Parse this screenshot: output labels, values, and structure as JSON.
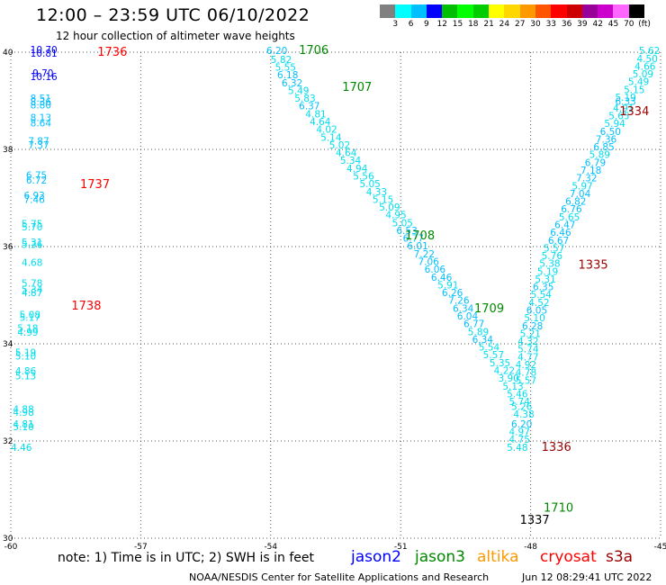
{
  "header": {
    "title": "12:00 – 23:59 UTC 06/10/2022",
    "subtitle": "12 hour collection of altimeter wave heights"
  },
  "colorbar": {
    "colors": [
      "#808080",
      "#00ffff",
      "#00bfff",
      "#0000ff",
      "#00bf00",
      "#00ff00",
      "#00cc00",
      "#ffff00",
      "#ffd700",
      "#ff9900",
      "#ff5500",
      "#ff0000",
      "#cc0000",
      "#990099",
      "#cc00cc",
      "#ff66ff",
      "#000000"
    ],
    "labels": [
      "3",
      "6",
      "9",
      "12",
      "15",
      "18",
      "21",
      "24",
      "27",
      "30",
      "33",
      "36",
      "39",
      "42",
      "45",
      "70",
      "(ft)"
    ]
  },
  "axes": {
    "x_ticks": [
      "-60",
      "-57",
      "-54",
      "-51",
      "-48",
      "-45"
    ],
    "y_ticks": [
      "40",
      "38",
      "36",
      "34",
      "32",
      "30"
    ]
  },
  "note": "note: 1) Time is in UTC; 2) SWH is in feet",
  "legend": {
    "jason2": {
      "label": "jason2",
      "color": "#0000ff"
    },
    "jason3": {
      "label": "jason3",
      "color": "#008800"
    },
    "altika": {
      "label": "altika",
      "color": "#ff9900"
    },
    "cryosat": {
      "label": "cryosat",
      "color": "#ff0000"
    },
    "s3a": {
      "label": "s3a",
      "color": "#990000"
    }
  },
  "footer": {
    "credit": "NOAA/NESDIS Center for Satellite Applications and Research",
    "stamp": "Jun 12 08:29:41 UTC 2022"
  },
  "map_data": {
    "lon_range": [
      -60,
      -45
    ],
    "lat_range": [
      30,
      40
    ],
    "time_labels": [
      {
        "text": "1736",
        "lon": -58.0,
        "lat": 39.93,
        "color": "#ff0000"
      },
      {
        "text": "1706",
        "lon": -53.35,
        "lat": 39.96,
        "color": "#008800"
      },
      {
        "text": "1707",
        "lon": -52.35,
        "lat": 39.2,
        "color": "#008800"
      },
      {
        "text": "1737",
        "lon": -58.4,
        "lat": 37.2,
        "color": "#ff0000"
      },
      {
        "text": "1708",
        "lon": -50.9,
        "lat": 36.15,
        "color": "#008800"
      },
      {
        "text": "1709",
        "lon": -49.3,
        "lat": 34.65,
        "color": "#008800"
      },
      {
        "text": "1738",
        "lon": -58.6,
        "lat": 34.7,
        "color": "#ff0000"
      },
      {
        "text": "1710",
        "lon": -47.7,
        "lat": 30.55,
        "color": "#008800"
      },
      {
        "text": "1334",
        "lon": -45.95,
        "lat": 38.7,
        "color": "#990000"
      },
      {
        "text": "1335",
        "lon": -46.9,
        "lat": 35.55,
        "color": "#990000"
      },
      {
        "text": "1336",
        "lon": -47.75,
        "lat": 31.8,
        "color": "#990000"
      },
      {
        "text": "1337",
        "lon": -48.25,
        "lat": 30.3,
        "color": "#000000"
      }
    ],
    "wave_heights": [
      {
        "v": "10.70",
        "lon": -59.55,
        "lat": 39.98,
        "c": "#0000ff"
      },
      {
        "v": "10.81",
        "lon": -59.55,
        "lat": 39.91,
        "c": "#0000ff"
      },
      {
        "v": "9.70",
        "lon": -59.5,
        "lat": 39.5,
        "c": "#0000ff"
      },
      {
        "v": "10.16",
        "lon": -59.55,
        "lat": 39.43,
        "c": "#0000ff"
      },
      {
        "v": "8.51",
        "lon": -59.55,
        "lat": 38.98,
        "c": "#00bfff"
      },
      {
        "v": "8.36",
        "lon": -59.55,
        "lat": 38.91,
        "c": "#00bfff"
      },
      {
        "v": "8.80",
        "lon": -59.55,
        "lat": 38.84,
        "c": "#00bfff"
      },
      {
        "v": "8.13",
        "lon": -59.55,
        "lat": 38.58,
        "c": "#00bfff"
      },
      {
        "v": "8.64",
        "lon": -59.55,
        "lat": 38.47,
        "c": "#00bfff"
      },
      {
        "v": "7.87",
        "lon": -59.6,
        "lat": 38.1,
        "c": "#00bfff"
      },
      {
        "v": "7.37",
        "lon": -59.6,
        "lat": 38.02,
        "c": "#00bfff"
      },
      {
        "v": "6.75",
        "lon": -59.65,
        "lat": 37.4,
        "c": "#00bfff"
      },
      {
        "v": "6.72",
        "lon": -59.65,
        "lat": 37.3,
        "c": "#00bfff"
      },
      {
        "v": "6.93",
        "lon": -59.7,
        "lat": 36.98,
        "c": "#00bfff"
      },
      {
        "v": "7.46",
        "lon": -59.7,
        "lat": 36.9,
        "c": "#00bfff"
      },
      {
        "v": "5.75",
        "lon": -59.75,
        "lat": 36.4,
        "c": "#00ddee"
      },
      {
        "v": "5.70",
        "lon": -59.75,
        "lat": 36.33,
        "c": "#00ddee"
      },
      {
        "v": "5.31",
        "lon": -59.75,
        "lat": 36.02,
        "c": "#00ddee"
      },
      {
        "v": "5.36",
        "lon": -59.75,
        "lat": 35.97,
        "c": "#00ddee"
      },
      {
        "v": "4.68",
        "lon": -59.75,
        "lat": 35.6,
        "c": "#00ddee"
      },
      {
        "v": "5.78",
        "lon": -59.75,
        "lat": 35.18,
        "c": "#00ddee"
      },
      {
        "v": "5.34",
        "lon": -59.75,
        "lat": 35.05,
        "c": "#00ddee"
      },
      {
        "v": "4.87",
        "lon": -59.75,
        "lat": 34.98,
        "c": "#00ddee"
      },
      {
        "v": "5.08",
        "lon": -59.8,
        "lat": 34.53,
        "c": "#00ddee"
      },
      {
        "v": "5.17",
        "lon": -59.8,
        "lat": 34.47,
        "c": "#00ddee"
      },
      {
        "v": "5.18",
        "lon": -59.85,
        "lat": 34.25,
        "c": "#00ddee"
      },
      {
        "v": "4.99",
        "lon": -59.85,
        "lat": 34.17,
        "c": "#00ddee"
      },
      {
        "v": "5.19",
        "lon": -59.9,
        "lat": 33.75,
        "c": "#00ddee"
      },
      {
        "v": "5.10",
        "lon": -59.9,
        "lat": 33.68,
        "c": "#00ddee"
      },
      {
        "v": "4.86",
        "lon": -59.9,
        "lat": 33.37,
        "c": "#00ddee"
      },
      {
        "v": "5.13",
        "lon": -59.9,
        "lat": 33.27,
        "c": "#00ddee"
      },
      {
        "v": "4.88",
        "lon": -59.95,
        "lat": 32.58,
        "c": "#00ddee"
      },
      {
        "v": "4.98",
        "lon": -59.95,
        "lat": 32.52,
        "c": "#00ddee"
      },
      {
        "v": "4.81",
        "lon": -59.95,
        "lat": 32.28,
        "c": "#00ddee"
      },
      {
        "v": "5.10",
        "lon": -59.95,
        "lat": 32.22,
        "c": "#00ddee"
      },
      {
        "v": "4.46",
        "lon": -60.0,
        "lat": 31.8,
        "c": "#00ddee"
      },
      {
        "v": "6.20",
        "lon": -54.1,
        "lat": 39.96,
        "c": "#00bfff"
      },
      {
        "v": "5.82",
        "lon": -54.0,
        "lat": 39.78,
        "c": "#00ddee"
      },
      {
        "v": "5.55",
        "lon": -53.9,
        "lat": 39.62,
        "c": "#00ddee"
      },
      {
        "v": "6.18",
        "lon": -53.85,
        "lat": 39.46,
        "c": "#00bfff"
      },
      {
        "v": "6.32",
        "lon": -53.75,
        "lat": 39.3,
        "c": "#00bfff"
      },
      {
        "v": "5.49",
        "lon": -53.6,
        "lat": 39.14,
        "c": "#00ddee"
      },
      {
        "v": "5.83",
        "lon": -53.45,
        "lat": 38.98,
        "c": "#00ddee"
      },
      {
        "v": "6.37",
        "lon": -53.35,
        "lat": 38.82,
        "c": "#00bfff"
      },
      {
        "v": "4.81",
        "lon": -53.2,
        "lat": 38.66,
        "c": "#00ddee"
      },
      {
        "v": "4.64",
        "lon": -53.1,
        "lat": 38.5,
        "c": "#00ddee"
      },
      {
        "v": "4.02",
        "lon": -52.95,
        "lat": 38.34,
        "c": "#00ddee"
      },
      {
        "v": "5.14",
        "lon": -52.85,
        "lat": 38.18,
        "c": "#00ddee"
      },
      {
        "v": "5.02",
        "lon": -52.65,
        "lat": 38.02,
        "c": "#00ddee"
      },
      {
        "v": "4.64",
        "lon": -52.5,
        "lat": 37.86,
        "c": "#00ddee"
      },
      {
        "v": "5.34",
        "lon": -52.4,
        "lat": 37.7,
        "c": "#00ddee"
      },
      {
        "v": "4.94",
        "lon": -52.25,
        "lat": 37.54,
        "c": "#00ddee"
      },
      {
        "v": "5.56",
        "lon": -52.1,
        "lat": 37.38,
        "c": "#00ddee"
      },
      {
        "v": "5.05",
        "lon": -51.95,
        "lat": 37.22,
        "c": "#00ddee"
      },
      {
        "v": "4.33",
        "lon": -51.8,
        "lat": 37.06,
        "c": "#00ddee"
      },
      {
        "v": "5.15",
        "lon": -51.65,
        "lat": 36.9,
        "c": "#00ddee"
      },
      {
        "v": "5.09",
        "lon": -51.5,
        "lat": 36.74,
        "c": "#00ddee"
      },
      {
        "v": "4.95",
        "lon": -51.35,
        "lat": 36.58,
        "c": "#00ddee"
      },
      {
        "v": "5.05",
        "lon": -51.2,
        "lat": 36.42,
        "c": "#00ddee"
      },
      {
        "v": "6.53",
        "lon": -51.1,
        "lat": 36.26,
        "c": "#00bfff"
      },
      {
        "v": "6.77",
        "lon": -50.95,
        "lat": 36.1,
        "c": "#00bfff"
      },
      {
        "v": "6.01",
        "lon": -50.85,
        "lat": 35.94,
        "c": "#00bfff"
      },
      {
        "v": "7.22",
        "lon": -50.7,
        "lat": 35.78,
        "c": "#00bfff"
      },
      {
        "v": "7.06",
        "lon": -50.6,
        "lat": 35.62,
        "c": "#00bfff"
      },
      {
        "v": "6.06",
        "lon": -50.45,
        "lat": 35.46,
        "c": "#00bfff"
      },
      {
        "v": "6.46",
        "lon": -50.3,
        "lat": 35.3,
        "c": "#00bfff"
      },
      {
        "v": "5.91",
        "lon": -50.15,
        "lat": 35.14,
        "c": "#00ddee"
      },
      {
        "v": "6.26",
        "lon": -50.05,
        "lat": 34.98,
        "c": "#00bfff"
      },
      {
        "v": "7.26",
        "lon": -49.9,
        "lat": 34.82,
        "c": "#00bfff"
      },
      {
        "v": "6.34",
        "lon": -49.8,
        "lat": 34.66,
        "c": "#00bfff"
      },
      {
        "v": "6.04",
        "lon": -49.7,
        "lat": 34.5,
        "c": "#00bfff"
      },
      {
        "v": "6.77",
        "lon": -49.55,
        "lat": 34.34,
        "c": "#00bfff"
      },
      {
        "v": "5.89",
        "lon": -49.45,
        "lat": 34.18,
        "c": "#00ddee"
      },
      {
        "v": "6.34",
        "lon": -49.35,
        "lat": 34.02,
        "c": "#00bfff"
      },
      {
        "v": "5.54",
        "lon": -49.2,
        "lat": 33.86,
        "c": "#00ddee"
      },
      {
        "v": "5.57",
        "lon": -49.1,
        "lat": 33.7,
        "c": "#00ddee"
      },
      {
        "v": "5.35",
        "lon": -48.95,
        "lat": 33.54,
        "c": "#00ddee"
      },
      {
        "v": "4.22",
        "lon": -48.85,
        "lat": 33.38,
        "c": "#00ddee"
      },
      {
        "v": "3.90",
        "lon": -48.75,
        "lat": 33.22,
        "c": "#00ddee"
      },
      {
        "v": "5.13",
        "lon": -48.65,
        "lat": 33.06,
        "c": "#00ddee"
      },
      {
        "v": "5.46",
        "lon": -48.55,
        "lat": 32.9,
        "c": "#00ddee"
      },
      {
        "v": "5.74",
        "lon": -48.5,
        "lat": 32.74,
        "c": "#00ddee"
      },
      {
        "v": "5.26",
        "lon": -48.45,
        "lat": 32.64,
        "c": "#00ddee"
      },
      {
        "v": "4.38",
        "lon": -48.4,
        "lat": 32.48,
        "c": "#00ddee"
      },
      {
        "v": "6.20",
        "lon": -48.45,
        "lat": 32.28,
        "c": "#00bfff"
      },
      {
        "v": "4.97",
        "lon": -48.5,
        "lat": 32.12,
        "c": "#00ddee"
      },
      {
        "v": "4.75",
        "lon": -48.5,
        "lat": 31.96,
        "c": "#00ddee"
      },
      {
        "v": "5.48",
        "lon": -48.55,
        "lat": 31.8,
        "c": "#00ddee"
      },
      {
        "v": "5.62",
        "lon": -45.5,
        "lat": 39.96,
        "c": "#00ddee"
      },
      {
        "v": "4.50",
        "lon": -45.55,
        "lat": 39.8,
        "c": "#00ddee"
      },
      {
        "v": "4.66",
        "lon": -45.6,
        "lat": 39.64,
        "c": "#00ddee"
      },
      {
        "v": "5.09",
        "lon": -45.65,
        "lat": 39.48,
        "c": "#00ddee"
      },
      {
        "v": "5.49",
        "lon": -45.75,
        "lat": 39.32,
        "c": "#00ddee"
      },
      {
        "v": "5.15",
        "lon": -45.85,
        "lat": 39.16,
        "c": "#00ddee"
      },
      {
        "v": "5.19",
        "lon": -46.05,
        "lat": 39.0,
        "c": "#00ddee"
      },
      {
        "v": "6.33",
        "lon": -46.05,
        "lat": 38.92,
        "c": "#00bfff"
      },
      {
        "v": "4.91",
        "lon": -46.1,
        "lat": 38.78,
        "c": "#00ddee"
      },
      {
        "v": "5.65",
        "lon": -46.2,
        "lat": 38.62,
        "c": "#00ddee"
      },
      {
        "v": "5.94",
        "lon": -46.3,
        "lat": 38.46,
        "c": "#00ddee"
      },
      {
        "v": "6.50",
        "lon": -46.4,
        "lat": 38.3,
        "c": "#00bfff"
      },
      {
        "v": "7.36",
        "lon": -46.5,
        "lat": 38.14,
        "c": "#00bfff"
      },
      {
        "v": "6.85",
        "lon": -46.55,
        "lat": 37.98,
        "c": "#00bfff"
      },
      {
        "v": "5.89",
        "lon": -46.65,
        "lat": 37.82,
        "c": "#00ddee"
      },
      {
        "v": "6.79",
        "lon": -46.75,
        "lat": 37.66,
        "c": "#00bfff"
      },
      {
        "v": "7.18",
        "lon": -46.85,
        "lat": 37.5,
        "c": "#00bfff"
      },
      {
        "v": "7.32",
        "lon": -46.95,
        "lat": 37.34,
        "c": "#00bfff"
      },
      {
        "v": "5.97",
        "lon": -47.05,
        "lat": 37.18,
        "c": "#00ddee"
      },
      {
        "v": "7.04",
        "lon": -47.1,
        "lat": 37.02,
        "c": "#00bfff"
      },
      {
        "v": "6.82",
        "lon": -47.2,
        "lat": 36.86,
        "c": "#00bfff"
      },
      {
        "v": "6.76",
        "lon": -47.3,
        "lat": 36.7,
        "c": "#00bfff"
      },
      {
        "v": "5.65",
        "lon": -47.35,
        "lat": 36.54,
        "c": "#00ddee"
      },
      {
        "v": "6.47",
        "lon": -47.45,
        "lat": 36.38,
        "c": "#00bfff"
      },
      {
        "v": "6.46",
        "lon": -47.55,
        "lat": 36.22,
        "c": "#00bfff"
      },
      {
        "v": "6.67",
        "lon": -47.6,
        "lat": 36.06,
        "c": "#00bfff"
      },
      {
        "v": "5.57",
        "lon": -47.7,
        "lat": 35.9,
        "c": "#00ddee"
      },
      {
        "v": "5.76",
        "lon": -47.75,
        "lat": 35.74,
        "c": "#00ddee"
      },
      {
        "v": "5.38",
        "lon": -47.8,
        "lat": 35.58,
        "c": "#00ddee"
      },
      {
        "v": "5.19",
        "lon": -47.85,
        "lat": 35.42,
        "c": "#00ddee"
      },
      {
        "v": "5.31",
        "lon": -47.9,
        "lat": 35.26,
        "c": "#00ddee"
      },
      {
        "v": "6.35",
        "lon": -47.95,
        "lat": 35.1,
        "c": "#00bfff"
      },
      {
        "v": "5.54",
        "lon": -48.0,
        "lat": 34.94,
        "c": "#00ddee"
      },
      {
        "v": "4.52",
        "lon": -48.05,
        "lat": 34.78,
        "c": "#00ddee"
      },
      {
        "v": "6.05",
        "lon": -48.1,
        "lat": 34.62,
        "c": "#00bfff"
      },
      {
        "v": "5.10",
        "lon": -48.15,
        "lat": 34.46,
        "c": "#00ddee"
      },
      {
        "v": "6.28",
        "lon": -48.2,
        "lat": 34.3,
        "c": "#00bfff"
      },
      {
        "v": "5.21",
        "lon": -48.25,
        "lat": 34.14,
        "c": "#00ddee"
      },
      {
        "v": "4.32",
        "lon": -48.3,
        "lat": 33.98,
        "c": "#00ddee"
      },
      {
        "v": "5.74",
        "lon": -48.3,
        "lat": 33.82,
        "c": "#00ddee"
      },
      {
        "v": "4.77",
        "lon": -48.3,
        "lat": 33.66,
        "c": "#00ddee"
      },
      {
        "v": "4.92",
        "lon": -48.35,
        "lat": 33.5,
        "c": "#00ddee"
      },
      {
        "v": "4.78",
        "lon": -48.35,
        "lat": 33.34,
        "c": "#00ddee"
      },
      {
        "v": "5.57",
        "lon": -48.35,
        "lat": 33.18,
        "c": "#00ddee"
      }
    ]
  }
}
